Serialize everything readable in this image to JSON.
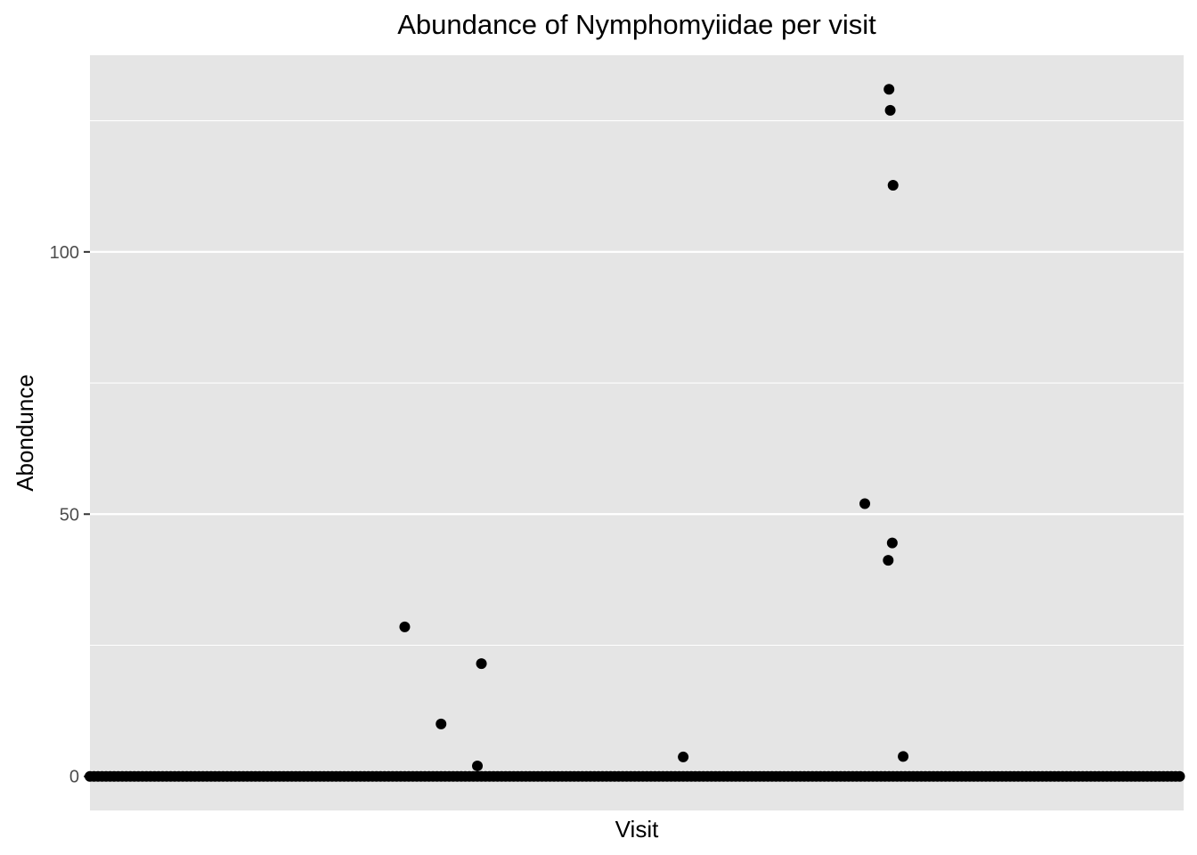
{
  "chart_data": {
    "type": "scatter",
    "title": "Abundance of Nymphomyiidae per visit",
    "xlabel": "Visit",
    "ylabel": "Abondunce",
    "x_ticks_shown": false,
    "xlim": [
      -7,
      264
    ],
    "ylim": [
      -6.5,
      137.5
    ],
    "y_ticks": [
      0,
      50,
      100
    ],
    "y_minor_ticks": [
      25,
      75,
      125
    ],
    "grid": true,
    "colors": {
      "panel_background": "#e5e5e5",
      "gridline": "#ffffff",
      "point": "#000000",
      "tick_label": "#4d4d4d",
      "text": "#000000"
    },
    "series": [
      {
        "x_range_zero": [
          -7,
          263
        ],
        "y_zero": 0,
        "points": [
          {
            "x": 71,
            "y": 28.5
          },
          {
            "x": 80,
            "y": 10
          },
          {
            "x": 90,
            "y": 21.5
          },
          {
            "x": 89,
            "y": 2
          },
          {
            "x": 140,
            "y": 3.7
          },
          {
            "x": 185,
            "y": 52
          },
          {
            "x": 191,
            "y": 131
          },
          {
            "x": 191.3,
            "y": 127
          },
          {
            "x": 192,
            "y": 112.7
          },
          {
            "x": 191.8,
            "y": 44.5
          },
          {
            "x": 190.8,
            "y": 41.2
          },
          {
            "x": 194.5,
            "y": 3.8
          }
        ]
      }
    ]
  }
}
